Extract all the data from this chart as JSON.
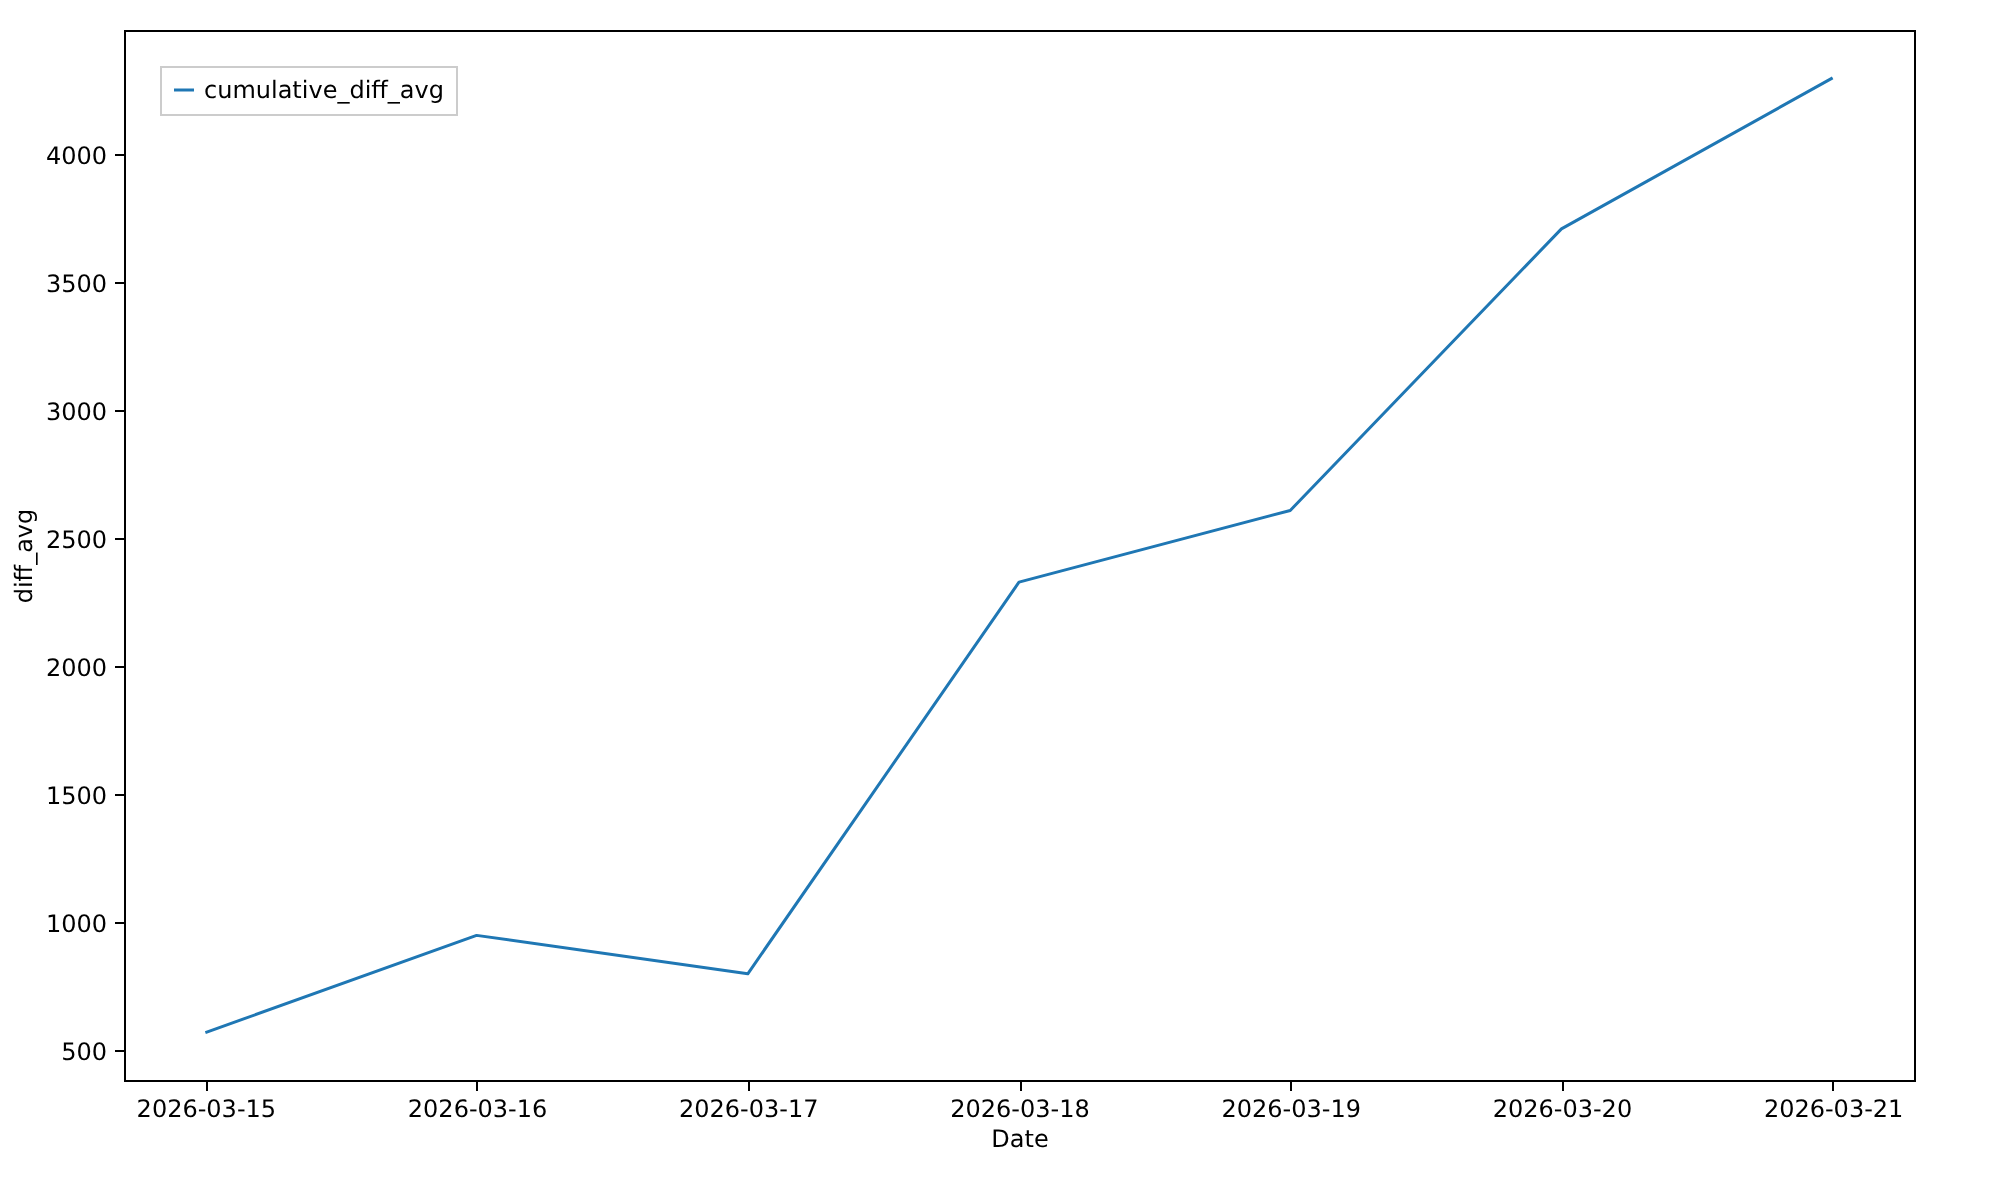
{
  "chart_data": {
    "type": "line",
    "xlabel": "Date",
    "ylabel": "diff_avg",
    "x": [
      "2026-03-15",
      "2026-03-16",
      "2026-03-17",
      "2026-03-18",
      "2026-03-19",
      "2026-03-20",
      "2026-03-21"
    ],
    "series": [
      {
        "name": "cumulative_diff_avg",
        "color": "#1f77b4",
        "values": [
          570,
          950,
          800,
          2330,
          2610,
          3710,
          4300
        ]
      }
    ],
    "xlim": [
      "2026-03-14T16:48",
      "2026-03-21T07:12"
    ],
    "xticks": [
      "2026-03-15",
      "2026-03-16",
      "2026-03-17",
      "2026-03-18",
      "2026-03-19",
      "2026-03-20",
      "2026-03-21"
    ],
    "ylim": [
      385,
      4487
    ],
    "yticks": [
      500,
      1000,
      1500,
      2000,
      2500,
      3000,
      3500,
      4000
    ],
    "grid": false,
    "legend": "top left",
    "marker": "none",
    "line_style": "solid"
  }
}
